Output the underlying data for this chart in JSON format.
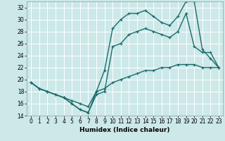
{
  "xlabel": "Humidex (Indice chaleur)",
  "bg_color": "#cce8e8",
  "grid_color": "#ffffff",
  "line_color": "#1a6b6b",
  "xlim": [
    -0.5,
    23.5
  ],
  "ylim": [
    14,
    33
  ],
  "xticks": [
    0,
    1,
    2,
    3,
    4,
    5,
    6,
    7,
    8,
    9,
    10,
    11,
    12,
    13,
    14,
    15,
    16,
    17,
    18,
    19,
    20,
    21,
    22,
    23
  ],
  "yticks": [
    14,
    16,
    18,
    20,
    22,
    24,
    26,
    28,
    30,
    32
  ],
  "line1_x": [
    0,
    1,
    2,
    3,
    4,
    5,
    6,
    7,
    8,
    9,
    10,
    11,
    12,
    13,
    14,
    15,
    16,
    17,
    18,
    19,
    20,
    21,
    22,
    23
  ],
  "line1_y": [
    19.5,
    18.5,
    18,
    17.5,
    17,
    16,
    15,
    14.5,
    18,
    21.5,
    28.5,
    30,
    31,
    31,
    31.5,
    30.5,
    29.5,
    29,
    30.5,
    33,
    33,
    25,
    23.5,
    22
  ],
  "line2_x": [
    0,
    1,
    2,
    3,
    4,
    5,
    6,
    7,
    8,
    9,
    10,
    11,
    12,
    13,
    14,
    15,
    16,
    17,
    18,
    19,
    20,
    21,
    22,
    23
  ],
  "line2_y": [
    19.5,
    18.5,
    18,
    17.5,
    17,
    16,
    15,
    14.5,
    17.5,
    18,
    25.5,
    26,
    27.5,
    28,
    28.5,
    28,
    27.5,
    27,
    28,
    31,
    25.5,
    24.5,
    24.5,
    22
  ],
  "line3_x": [
    0,
    1,
    2,
    3,
    4,
    5,
    6,
    7,
    8,
    9,
    10,
    11,
    12,
    13,
    14,
    15,
    16,
    17,
    18,
    19,
    20,
    21,
    22,
    23
  ],
  "line3_y": [
    19.5,
    18.5,
    18,
    17.5,
    17,
    16.5,
    16,
    15.5,
    18,
    18.5,
    19.5,
    20,
    20.5,
    21,
    21.5,
    21.5,
    22,
    22,
    22.5,
    22.5,
    22.5,
    22,
    22,
    22
  ],
  "marker_size": 3,
  "line_width": 1.0,
  "tick_fontsize": 5.5,
  "xlabel_fontsize": 6.5
}
